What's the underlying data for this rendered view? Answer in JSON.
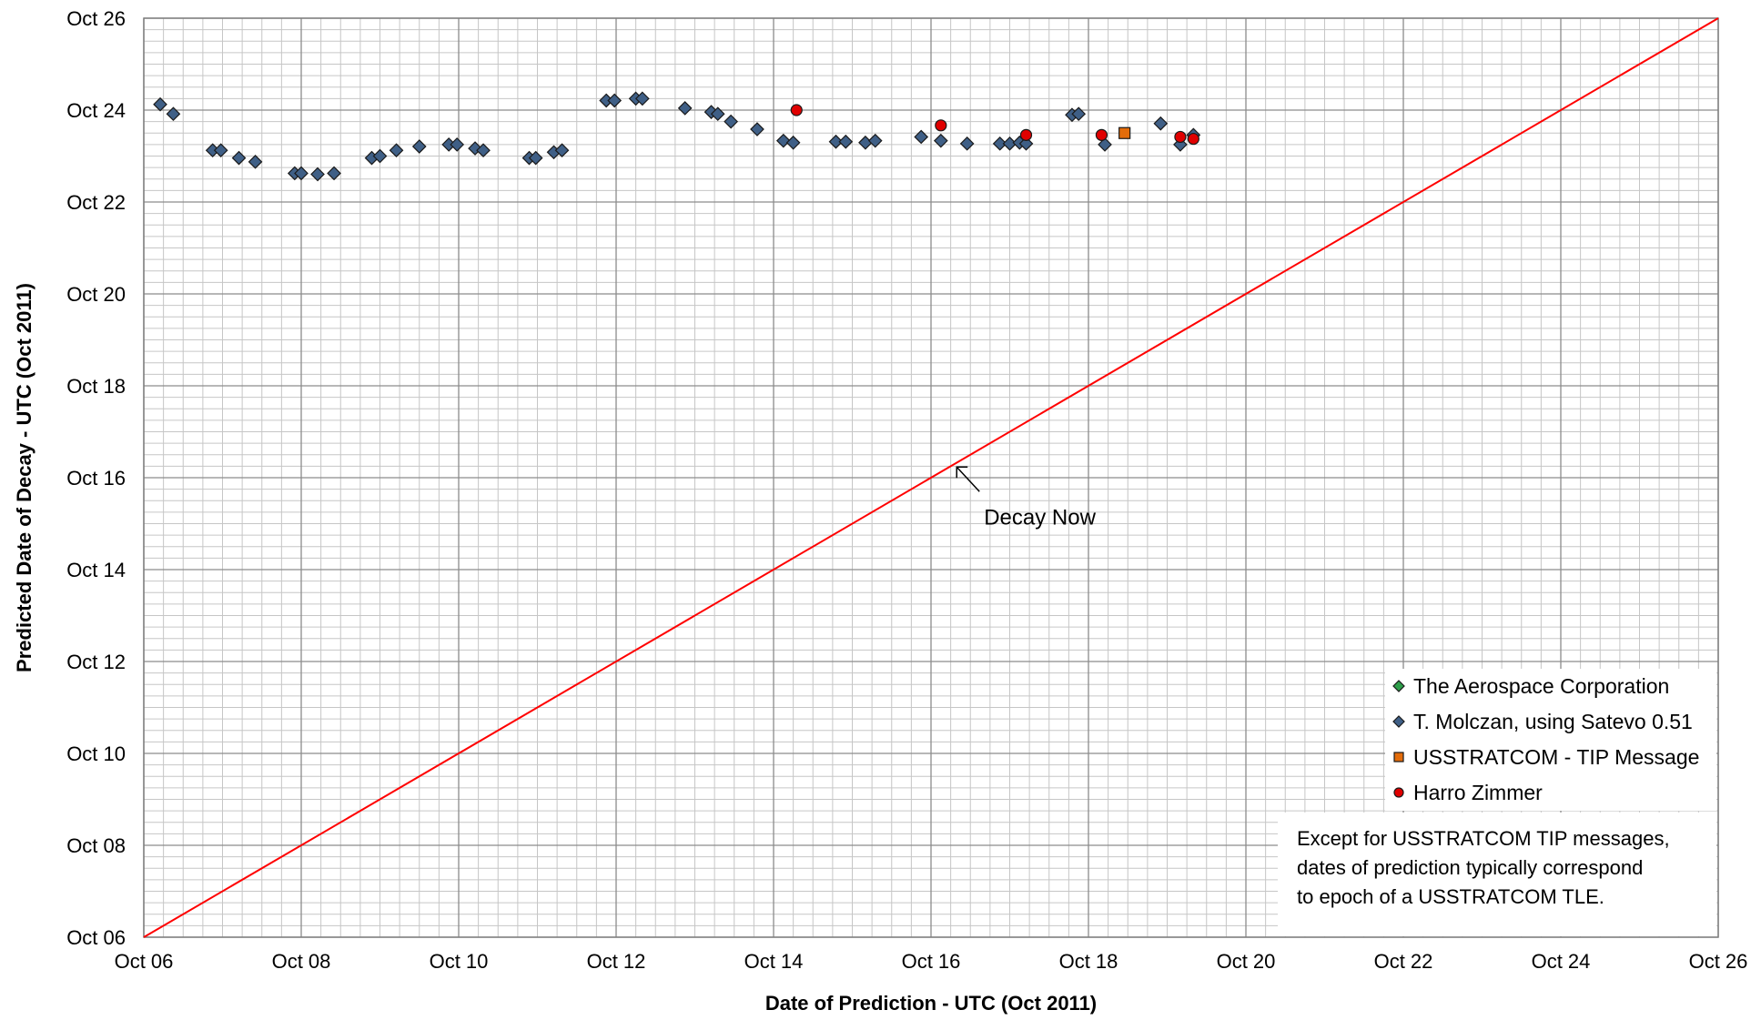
{
  "chart_data": {
    "type": "scatter",
    "title": "",
    "xlabel": "Date of Prediction - UTC (Oct 2011)",
    "ylabel": "Predicted Date of Decay - UTC (Oct 2011)",
    "x_range": [
      "2011-10-06",
      "2011-10-26"
    ],
    "y_range": [
      "2011-10-06",
      "2011-10-26"
    ],
    "x_ticks": [
      "Oct 06",
      "Oct 08",
      "Oct 10",
      "Oct 12",
      "Oct 14",
      "Oct 16",
      "Oct 18",
      "Oct 20",
      "Oct 22",
      "Oct 24",
      "Oct 26"
    ],
    "y_ticks": [
      "Oct 06",
      "Oct 08",
      "Oct 10",
      "Oct 12",
      "Oct 14",
      "Oct 16",
      "Oct 18",
      "Oct 20",
      "Oct 22",
      "Oct 24",
      "Oct 26"
    ],
    "grid": true,
    "legend_position": "bottom-right",
    "series": [
      {
        "name": "The Aerospace Corporation",
        "marker": "diamond",
        "color": "#2e9e4a",
        "x": [],
        "y": []
      },
      {
        "name": "T. Molczan, using Satevo 0.51",
        "marker": "diamond",
        "color": "#3f5f86",
        "x": [
          "2011-10-06T05:00",
          "2011-10-06T09:00",
          "2011-10-06T21:00",
          "2011-10-06T23:30",
          "2011-10-07T05:00",
          "2011-10-07T10:00",
          "2011-10-07T22:00",
          "2011-10-08T00:00",
          "2011-10-08T05:00",
          "2011-10-08T10:00",
          "2011-10-08T21:30",
          "2011-10-09T00:00",
          "2011-10-09T05:00",
          "2011-10-09T12:00",
          "2011-10-09T21:00",
          "2011-10-09T23:30",
          "2011-10-10T05:00",
          "2011-10-10T07:30",
          "2011-10-10T21:30",
          "2011-10-10T23:30",
          "2011-10-11T05:00",
          "2011-10-11T07:30",
          "2011-10-11T21:00",
          "2011-10-11T23:30",
          "2011-10-12T06:00",
          "2011-10-12T08:00",
          "2011-10-12T21:00",
          "2011-10-13T05:00",
          "2011-10-13T07:00",
          "2011-10-13T11:00",
          "2011-10-13T19:00",
          "2011-10-14T03:00",
          "2011-10-14T06:00",
          "2011-10-14T19:00",
          "2011-10-14T22:00",
          "2011-10-15T04:00",
          "2011-10-15T07:00",
          "2011-10-15T21:00",
          "2011-10-16T03:00",
          "2011-10-16T11:00",
          "2011-10-16T21:00",
          "2011-10-17T00:00",
          "2011-10-17T03:00",
          "2011-10-17T05:00",
          "2011-10-17T19:00",
          "2011-10-17T21:00",
          "2011-10-18T05:00",
          "2011-10-18T22:00",
          "2011-10-19T04:00",
          "2011-10-19T08:00"
        ],
        "y": [
          "2011-10-24T03:00",
          "2011-10-23T22:00",
          "2011-10-23T03:00",
          "2011-10-23T03:00",
          "2011-10-22T23:00",
          "2011-10-22T21:00",
          "2011-10-22T15:00",
          "2011-10-22T15:00",
          "2011-10-22T14:30",
          "2011-10-22T15:00",
          "2011-10-22T23:00",
          "2011-10-23T00:00",
          "2011-10-23T03:00",
          "2011-10-23T05:00",
          "2011-10-23T06:00",
          "2011-10-23T06:00",
          "2011-10-23T04:00",
          "2011-10-23T03:00",
          "2011-10-22T23:00",
          "2011-10-22T23:00",
          "2011-10-23T02:00",
          "2011-10-23T03:00",
          "2011-10-24T05:00",
          "2011-10-24T05:00",
          "2011-10-24T06:00",
          "2011-10-24T06:00",
          "2011-10-24T01:00",
          "2011-10-23T23:00",
          "2011-10-23T22:00",
          "2011-10-23T18:00",
          "2011-10-23T14:00",
          "2011-10-23T08:00",
          "2011-10-23T07:00",
          "2011-10-23T07:30",
          "2011-10-23T07:30",
          "2011-10-23T07:00",
          "2011-10-23T08:00",
          "2011-10-23T10:00",
          "2011-10-23T08:00",
          "2011-10-23T06:30",
          "2011-10-23T06:30",
          "2011-10-23T06:30",
          "2011-10-23T07:00",
          "2011-10-23T06:30",
          "2011-10-23T21:30",
          "2011-10-23T22:00",
          "2011-10-23T06:00",
          "2011-10-23T17:00",
          "2011-10-23T06:00",
          "2011-10-23T11:00"
        ]
      },
      {
        "name": "USSTRATCOM - TIP Message",
        "marker": "square",
        "color": "#e36c0a",
        "x": [
          "2011-10-18T11:00"
        ],
        "y": [
          "2011-10-23T12:00"
        ]
      },
      {
        "name": "Harro Zimmer",
        "marker": "circle",
        "color": "#e00000",
        "x": [
          "2011-10-14T07:00",
          "2011-10-16T03:00",
          "2011-10-17T05:00",
          "2011-10-18T04:00",
          "2011-10-19T04:00",
          "2011-10-19T08:00"
        ],
        "y": [
          "2011-10-24T00:00",
          "2011-10-23T16:00",
          "2011-10-23T11:00",
          "2011-10-23T11:00",
          "2011-10-23T10:00",
          "2011-10-23T09:00"
        ]
      }
    ],
    "reference_line": {
      "label": "Decay Now",
      "color": "#ff0000",
      "from": [
        "2011-10-06",
        "2011-10-06"
      ],
      "to": [
        "2011-10-26",
        "2011-10-26"
      ]
    },
    "annotation": {
      "text": "Decay Now",
      "points_to": [
        "2011-10-16T07:00",
        "2011-10-16T07:00"
      ]
    },
    "note_lines": [
      "Except for USSTRATCOM TIP messages,",
      "dates of prediction typically correspond",
      "to epoch of a USSTRATCOM TLE."
    ]
  }
}
